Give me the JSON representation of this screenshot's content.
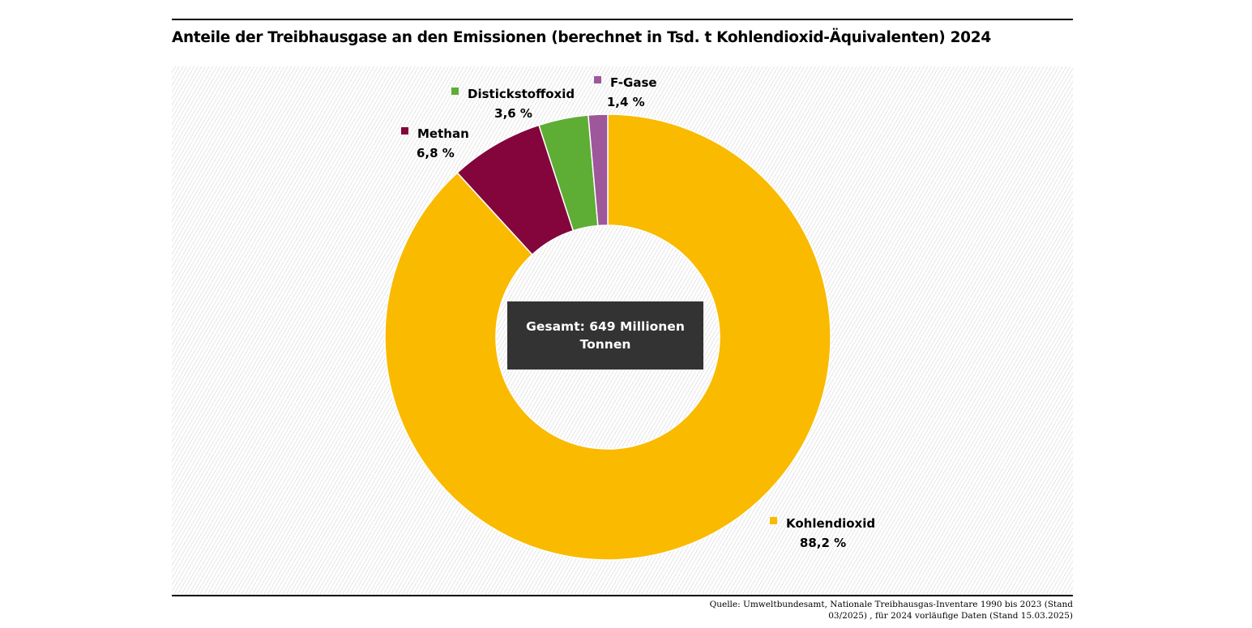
{
  "title": "Anteile der Treibhausgase an den Emissionen (berechnet in Tsd. t Kohlendioxid-Äquivalenten) 2024",
  "center_label": "Gesamt: 649 Millionen Tonnen",
  "source_line1": "Quelle: Umweltbundesamt, Nationale Treibhausgas-Inventare 1990 bis 2023 (Stand",
  "source_line2": "03/2025) , für 2024 vorläufige Daten (Stand 15.03.2025)",
  "chart_data": {
    "type": "pie",
    "style": "donut",
    "slices": [
      {
        "label": "Kohlendioxid",
        "value": 88.2,
        "value_label": "88,2 %",
        "color": "#F9BA00"
      },
      {
        "label": "Methan",
        "value": 6.8,
        "value_label": "6,8 %",
        "color": "#83053C"
      },
      {
        "label": "Distickstoffoxid",
        "value": 3.6,
        "value_label": "3,6 %",
        "color": "#5EAD35"
      },
      {
        "label": "F-Gase",
        "value": 1.4,
        "value_label": "1,4 %",
        "color": "#9D579A"
      }
    ]
  }
}
